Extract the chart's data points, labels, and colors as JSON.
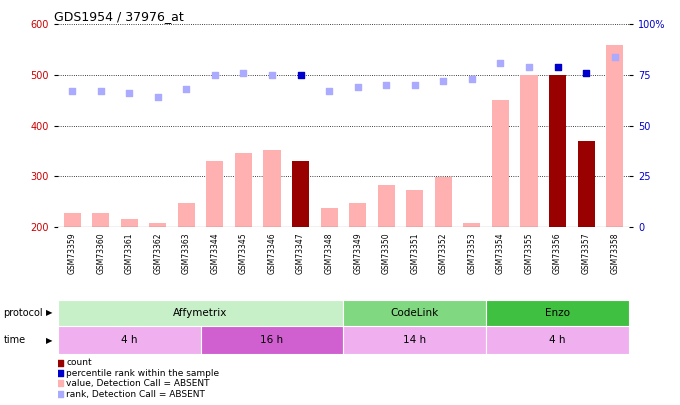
{
  "title": "GDS1954 / 37976_at",
  "samples": [
    "GSM73359",
    "GSM73360",
    "GSM73361",
    "GSM73362",
    "GSM73363",
    "GSM73344",
    "GSM73345",
    "GSM73346",
    "GSM73347",
    "GSM73348",
    "GSM73349",
    "GSM73350",
    "GSM73351",
    "GSM73352",
    "GSM73353",
    "GSM73354",
    "GSM73355",
    "GSM73356",
    "GSM73357",
    "GSM73358"
  ],
  "values": [
    228,
    228,
    215,
    208,
    248,
    330,
    345,
    352,
    330,
    238,
    248,
    283,
    273,
    298,
    208,
    450,
    500,
    500,
    370,
    560
  ],
  "value_is_dark": [
    false,
    false,
    false,
    false,
    false,
    false,
    false,
    false,
    true,
    false,
    false,
    false,
    false,
    false,
    false,
    false,
    false,
    true,
    true,
    false
  ],
  "ranks_pct": [
    67,
    67,
    66,
    64,
    68,
    75,
    76,
    75,
    75,
    67,
    69,
    70,
    70,
    72,
    73,
    81,
    79,
    79,
    76,
    84
  ],
  "rank_is_dark": [
    false,
    false,
    false,
    false,
    false,
    false,
    false,
    false,
    true,
    false,
    false,
    false,
    false,
    false,
    false,
    false,
    false,
    true,
    true,
    false
  ],
  "ylim_left": [
    200,
    600
  ],
  "ylim_right": [
    0,
    100
  ],
  "yticks_left": [
    200,
    300,
    400,
    500,
    600
  ],
  "yticks_right": [
    0,
    25,
    50,
    75,
    100
  ],
  "protocol_groups": [
    {
      "label": "Affymetrix",
      "start": 0,
      "end": 10,
      "color": "#c8f0c8"
    },
    {
      "label": "CodeLink",
      "start": 10,
      "end": 15,
      "color": "#80d880"
    },
    {
      "label": "Enzo",
      "start": 15,
      "end": 20,
      "color": "#40c040"
    }
  ],
  "time_groups": [
    {
      "label": "4 h",
      "start": 0,
      "end": 5,
      "color": "#f0b0f0"
    },
    {
      "label": "16 h",
      "start": 5,
      "end": 10,
      "color": "#d060d0"
    },
    {
      "label": "14 h",
      "start": 10,
      "end": 15,
      "color": "#f0b0f0"
    },
    {
      "label": "4 h",
      "start": 15,
      "end": 20,
      "color": "#f0b0f0"
    }
  ],
  "light_bar_color": "#ffb0b0",
  "dark_bar_color": "#990000",
  "light_dot_color": "#aaaaff",
  "dark_dot_color": "#0000cc",
  "ylabel_left_color": "#cc0000",
  "ylabel_right_color": "#0000cc",
  "bg_color": "#ffffff",
  "grid_color": "#000000",
  "legend_items": [
    {
      "color": "#990000",
      "label": "count"
    },
    {
      "color": "#0000cc",
      "label": "percentile rank within the sample"
    },
    {
      "color": "#ffb0b0",
      "label": "value, Detection Call = ABSENT"
    },
    {
      "color": "#aaaaff",
      "label": "rank, Detection Call = ABSENT"
    }
  ]
}
